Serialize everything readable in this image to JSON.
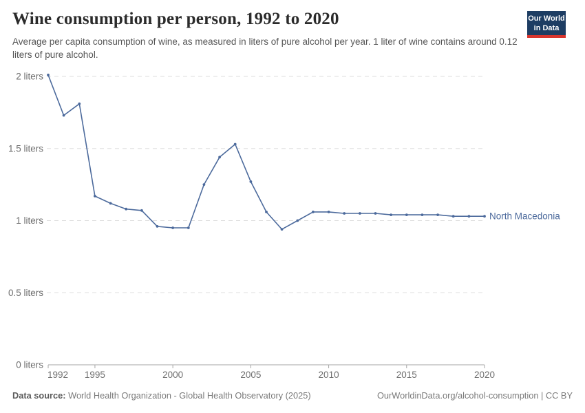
{
  "header": {
    "title": "Wine consumption per person, 1992 to 2020",
    "subtitle": "Average per capita consumption of wine, as measured in liters of pure alcohol per year. 1 liter of wine contains around 0.12 liters of pure alcohol."
  },
  "logo": {
    "line1": "Our World",
    "line2": "in Data",
    "bg_color": "#1d3d63",
    "accent_color": "#d8352e"
  },
  "chart_data": {
    "type": "line",
    "title": "Wine consumption per person, 1992 to 2020",
    "xlabel": "",
    "ylabel": "",
    "xlim": [
      1992,
      2020
    ],
    "ylim": [
      0,
      2
    ],
    "grid": "horizontal-dashed",
    "legend_position": "end-of-line-label",
    "x_ticks": [
      1992,
      1995,
      2000,
      2005,
      2010,
      2015,
      2020
    ],
    "y_ticks": [
      {
        "value": 0,
        "label": "0 liters"
      },
      {
        "value": 0.5,
        "label": "0.5 liters"
      },
      {
        "value": 1,
        "label": "1 liters"
      },
      {
        "value": 1.5,
        "label": "1.5 liters"
      },
      {
        "value": 2,
        "label": "2 liters"
      }
    ],
    "x": [
      1992,
      1993,
      1994,
      1995,
      1996,
      1997,
      1998,
      1999,
      2000,
      2001,
      2002,
      2003,
      2004,
      2005,
      2006,
      2007,
      2008,
      2009,
      2010,
      2011,
      2012,
      2013,
      2014,
      2015,
      2016,
      2017,
      2018,
      2019,
      2020
    ],
    "series": [
      {
        "name": "North Macedonia",
        "color": "#4c6a9c",
        "values": [
          2.01,
          1.73,
          1.81,
          1.17,
          1.12,
          1.08,
          1.07,
          0.96,
          0.95,
          0.95,
          1.25,
          1.44,
          1.53,
          1.27,
          1.06,
          0.94,
          1.0,
          1.06,
          1.06,
          1.05,
          1.05,
          1.05,
          1.04,
          1.04,
          1.04,
          1.04,
          1.03,
          1.03,
          1.03
        ]
      }
    ],
    "axis_color": "#a5a5a5",
    "grid_color": "#dddddd",
    "tick_label_color": "#6e6e6e"
  },
  "footer": {
    "datasource_label": "Data source:",
    "datasource_text": "World Health Organization - Global Health Observatory (2025)",
    "link": "OurWorldinData.org/alcohol-consumption",
    "license_suffix": " | CC BY"
  }
}
